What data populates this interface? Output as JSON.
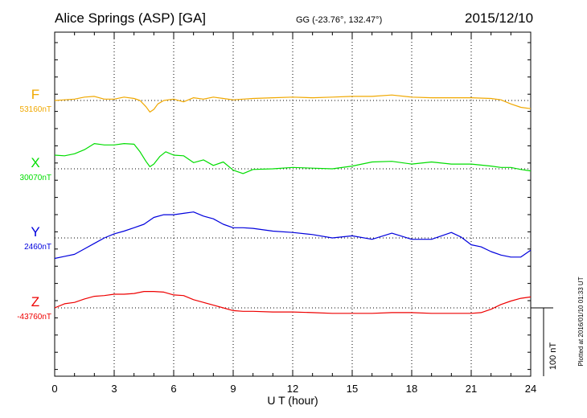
{
  "header": {
    "station": "Alice Springs (ASP)  [GA]",
    "coords": "GG (-23.76°, 132.47°)",
    "date": "2015/12/10"
  },
  "plotted_note": "Plotted at 2016/01/10 01:33 UT",
  "scale_bar_label": "100 nT",
  "chart_data": {
    "type": "line",
    "xlabel": "U T (hour)",
    "xlim": [
      0,
      24
    ],
    "x_ticks": [
      "0",
      "3",
      "6",
      "9",
      "12",
      "15",
      "18",
      "21",
      "24"
    ],
    "grid": true,
    "scale_nT_per_bar": 100,
    "series": [
      {
        "name": "F",
        "baseline_label": "53160nT",
        "baseline": 53160,
        "color": "#f0a800",
        "x": [
          0,
          0.5,
          1,
          1.5,
          2,
          2.5,
          3,
          3.5,
          4,
          4.3,
          4.6,
          4.8,
          5,
          5.2,
          5.5,
          6,
          6.5,
          7,
          7.5,
          8,
          8.5,
          9,
          9.5,
          10,
          11,
          12,
          13,
          14,
          15,
          16,
          17,
          18,
          19,
          20,
          21,
          22,
          22.5,
          23,
          23.5,
          24
        ],
        "values": [
          53160,
          53161,
          53162,
          53165,
          53166,
          53162,
          53162,
          53165,
          53163,
          53160,
          53151,
          53143,
          53147,
          53155,
          53160,
          53162,
          53158,
          53164,
          53162,
          53165,
          53163,
          53161,
          53162,
          53163,
          53164,
          53165,
          53164,
          53165,
          53166,
          53166,
          53168,
          53165,
          53164,
          53164,
          53164,
          53163,
          53161,
          53155,
          53150,
          53148
        ]
      },
      {
        "name": "X",
        "baseline_label": "30070nT",
        "baseline": 30070,
        "color": "#00dd00",
        "x": [
          0,
          0.5,
          1,
          1.5,
          2,
          2.5,
          3,
          3.5,
          4,
          4.3,
          4.6,
          4.8,
          5,
          5.3,
          5.6,
          6,
          6.5,
          7,
          7.5,
          8,
          8.5,
          9,
          9.5,
          10,
          11,
          12,
          13,
          14,
          15,
          16,
          17,
          18,
          19,
          20,
          21,
          22,
          22.5,
          23,
          23.5,
          24
        ],
        "values": [
          30090,
          30089,
          30092,
          30098,
          30107,
          30105,
          30105,
          30107,
          30106,
          30095,
          30081,
          30073,
          30077,
          30088,
          30095,
          30090,
          30089,
          30079,
          30083,
          30075,
          30080,
          30068,
          30063,
          30069,
          30070,
          30072,
          30071,
          30070,
          30074,
          30080,
          30081,
          30077,
          30080,
          30077,
          30077,
          30074,
          30072,
          30072,
          30069,
          30067
        ]
      },
      {
        "name": "Y",
        "baseline_label": "2460nT",
        "baseline": 2460,
        "color": "#0000dd",
        "x": [
          0,
          0.5,
          1,
          1.5,
          2,
          2.5,
          3,
          3.5,
          4,
          4.5,
          5,
          5.5,
          6,
          6.5,
          7,
          7.5,
          8,
          8.5,
          9,
          9.5,
          10,
          11,
          12,
          13,
          14,
          15,
          16,
          17,
          18,
          19,
          20,
          20.5,
          21,
          21.5,
          22,
          22.5,
          23,
          23.5,
          24
        ],
        "values": [
          2430,
          2433,
          2436,
          2444,
          2452,
          2460,
          2466,
          2470,
          2475,
          2480,
          2490,
          2494,
          2494,
          2496,
          2498,
          2492,
          2488,
          2480,
          2475,
          2475,
          2474,
          2470,
          2468,
          2465,
          2460,
          2463,
          2458,
          2467,
          2458,
          2458,
          2468,
          2461,
          2450,
          2447,
          2440,
          2435,
          2432,
          2432,
          2442
        ]
      },
      {
        "name": "Z",
        "baseline_label": "-43760nT",
        "baseline": -43760,
        "color": "#ee0000",
        "x": [
          0,
          0.5,
          1,
          1.5,
          2,
          2.5,
          3,
          3.5,
          4,
          4.5,
          5,
          5.5,
          6,
          6.5,
          7,
          7.5,
          8,
          8.5,
          9,
          9.5,
          10,
          11,
          12,
          13,
          14,
          15,
          16,
          17,
          18,
          19,
          20,
          21,
          21.5,
          22,
          22.5,
          23,
          23.5,
          24
        ],
        "values": [
          -43760,
          -43754,
          -43752,
          -43747,
          -43743,
          -43742,
          -43740,
          -43740,
          -43739,
          -43736,
          -43736,
          -43737,
          -43741,
          -43742,
          -43748,
          -43752,
          -43756,
          -43760,
          -43764,
          -43765,
          -43765,
          -43766,
          -43766,
          -43767,
          -43768,
          -43768,
          -43768,
          -43767,
          -43767,
          -43768,
          -43768,
          -43768,
          -43767,
          -43762,
          -43755,
          -43750,
          -43746,
          -43744
        ]
      }
    ]
  }
}
